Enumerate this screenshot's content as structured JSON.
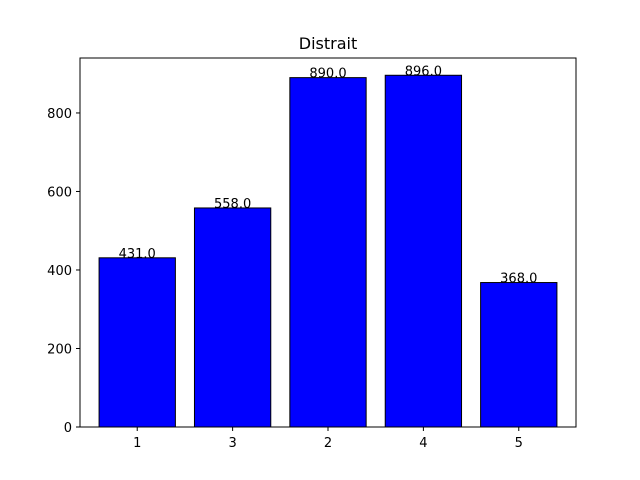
{
  "chart_data": {
    "type": "bar",
    "title": "Distrait",
    "xlabel": "",
    "ylabel": "",
    "categories": [
      "1",
      "3",
      "2",
      "4",
      "5"
    ],
    "values": [
      431.0,
      558.0,
      890.0,
      896.0,
      368.0
    ],
    "data_labels": [
      "431.0",
      "558.0",
      "890.0",
      "896.0",
      "368.0"
    ],
    "ylim": [
      0,
      940
    ],
    "yticks": [
      0,
      200,
      400,
      600,
      800
    ],
    "ytick_labels": [
      "0",
      "200",
      "400",
      "600",
      "800"
    ],
    "bar_color": "#0000ff",
    "edge_color": "#000000",
    "grid": false,
    "legend": "none"
  }
}
